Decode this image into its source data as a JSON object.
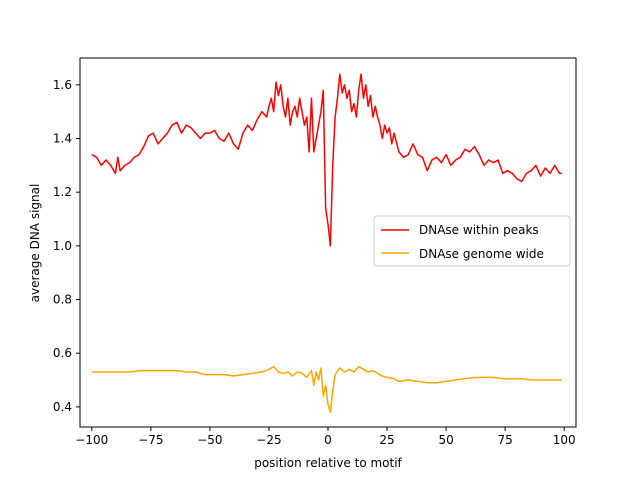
{
  "chart_data": {
    "type": "line",
    "xlabel": "position relative to motif",
    "ylabel": "average DNA signal",
    "xlim": [
      -105,
      105
    ],
    "ylim": [
      0.325,
      1.7
    ],
    "x_ticks": [
      -100,
      -75,
      -50,
      -25,
      0,
      25,
      50,
      75,
      100
    ],
    "x_tick_labels": [
      "−100",
      "−75",
      "−50",
      "−25",
      "0",
      "25",
      "50",
      "75",
      "100"
    ],
    "y_ticks": [
      0.4,
      0.6,
      0.8,
      1.0,
      1.2,
      1.4,
      1.6
    ],
    "y_tick_labels": [
      "0.4",
      "0.6",
      "0.8",
      "1.0",
      "1.2",
      "1.4",
      "1.6"
    ],
    "grid": false,
    "legend_position": "center-right",
    "series": [
      {
        "name": "DNAse within peaks",
        "color": "#ff0000",
        "points": [
          [
            -100,
            1.34
          ],
          [
            -98,
            1.33
          ],
          [
            -96,
            1.3
          ],
          [
            -94,
            1.32
          ],
          [
            -92,
            1.3
          ],
          [
            -90,
            1.27
          ],
          [
            -89,
            1.33
          ],
          [
            -88,
            1.28
          ],
          [
            -86,
            1.3
          ],
          [
            -84,
            1.31
          ],
          [
            -82,
            1.33
          ],
          [
            -80,
            1.34
          ],
          [
            -78,
            1.37
          ],
          [
            -76,
            1.41
          ],
          [
            -74,
            1.42
          ],
          [
            -72,
            1.38
          ],
          [
            -70,
            1.4
          ],
          [
            -68,
            1.42
          ],
          [
            -66,
            1.45
          ],
          [
            -64,
            1.46
          ],
          [
            -62,
            1.42
          ],
          [
            -60,
            1.45
          ],
          [
            -58,
            1.44
          ],
          [
            -56,
            1.42
          ],
          [
            -54,
            1.4
          ],
          [
            -52,
            1.42
          ],
          [
            -50,
            1.42
          ],
          [
            -48,
            1.43
          ],
          [
            -46,
            1.4
          ],
          [
            -44,
            1.39
          ],
          [
            -42,
            1.42
          ],
          [
            -40,
            1.38
          ],
          [
            -38,
            1.36
          ],
          [
            -36,
            1.42
          ],
          [
            -34,
            1.45
          ],
          [
            -32,
            1.43
          ],
          [
            -30,
            1.47
          ],
          [
            -28,
            1.5
          ],
          [
            -26,
            1.48
          ],
          [
            -25,
            1.52
          ],
          [
            -24,
            1.55
          ],
          [
            -23,
            1.5
          ],
          [
            -22,
            1.61
          ],
          [
            -21,
            1.56
          ],
          [
            -20,
            1.6
          ],
          [
            -19,
            1.52
          ],
          [
            -18,
            1.48
          ],
          [
            -17,
            1.55
          ],
          [
            -16,
            1.45
          ],
          [
            -15,
            1.5
          ],
          [
            -14,
            1.52
          ],
          [
            -13,
            1.48
          ],
          [
            -12,
            1.55
          ],
          [
            -11,
            1.5
          ],
          [
            -10,
            1.45
          ],
          [
            -9,
            1.48
          ],
          [
            -8,
            1.35
          ],
          [
            -7,
            1.55
          ],
          [
            -6,
            1.35
          ],
          [
            -5,
            1.4
          ],
          [
            -4,
            1.45
          ],
          [
            -3,
            1.5
          ],
          [
            -2,
            1.58
          ],
          [
            -1,
            1.14
          ],
          [
            0,
            1.08
          ],
          [
            1,
            1.0
          ],
          [
            2,
            1.3
          ],
          [
            3,
            1.48
          ],
          [
            4,
            1.55
          ],
          [
            5,
            1.64
          ],
          [
            6,
            1.57
          ],
          [
            7,
            1.6
          ],
          [
            8,
            1.55
          ],
          [
            9,
            1.58
          ],
          [
            10,
            1.5
          ],
          [
            11,
            1.53
          ],
          [
            12,
            1.48
          ],
          [
            13,
            1.58
          ],
          [
            14,
            1.64
          ],
          [
            15,
            1.55
          ],
          [
            16,
            1.6
          ],
          [
            17,
            1.52
          ],
          [
            18,
            1.56
          ],
          [
            19,
            1.48
          ],
          [
            20,
            1.52
          ],
          [
            21,
            1.48
          ],
          [
            22,
            1.45
          ],
          [
            23,
            1.4
          ],
          [
            24,
            1.45
          ],
          [
            25,
            1.42
          ],
          [
            26,
            1.44
          ],
          [
            27,
            1.38
          ],
          [
            28,
            1.42
          ],
          [
            30,
            1.35
          ],
          [
            32,
            1.33
          ],
          [
            34,
            1.34
          ],
          [
            36,
            1.38
          ],
          [
            38,
            1.34
          ],
          [
            40,
            1.33
          ],
          [
            42,
            1.28
          ],
          [
            44,
            1.32
          ],
          [
            46,
            1.33
          ],
          [
            48,
            1.31
          ],
          [
            50,
            1.34
          ],
          [
            52,
            1.3
          ],
          [
            54,
            1.32
          ],
          [
            56,
            1.33
          ],
          [
            58,
            1.36
          ],
          [
            60,
            1.35
          ],
          [
            62,
            1.37
          ],
          [
            64,
            1.34
          ],
          [
            66,
            1.3
          ],
          [
            68,
            1.32
          ],
          [
            70,
            1.31
          ],
          [
            72,
            1.32
          ],
          [
            74,
            1.27
          ],
          [
            76,
            1.28
          ],
          [
            78,
            1.27
          ],
          [
            80,
            1.25
          ],
          [
            82,
            1.24
          ],
          [
            84,
            1.27
          ],
          [
            86,
            1.28
          ],
          [
            88,
            1.3
          ],
          [
            90,
            1.26
          ],
          [
            92,
            1.29
          ],
          [
            94,
            1.27
          ],
          [
            96,
            1.3
          ],
          [
            98,
            1.27
          ],
          [
            99,
            1.27
          ]
        ]
      },
      {
        "name": "DNAse genome wide",
        "color": "#ffa500",
        "points": [
          [
            -100,
            0.53
          ],
          [
            -96,
            0.53
          ],
          [
            -92,
            0.53
          ],
          [
            -88,
            0.53
          ],
          [
            -84,
            0.53
          ],
          [
            -80,
            0.535
          ],
          [
            -76,
            0.535
          ],
          [
            -72,
            0.535
          ],
          [
            -68,
            0.535
          ],
          [
            -64,
            0.535
          ],
          [
            -60,
            0.53
          ],
          [
            -56,
            0.53
          ],
          [
            -52,
            0.52
          ],
          [
            -48,
            0.52
          ],
          [
            -44,
            0.52
          ],
          [
            -40,
            0.515
          ],
          [
            -36,
            0.52
          ],
          [
            -32,
            0.525
          ],
          [
            -28,
            0.53
          ],
          [
            -25,
            0.54
          ],
          [
            -23,
            0.55
          ],
          [
            -21,
            0.53
          ],
          [
            -19,
            0.525
          ],
          [
            -17,
            0.53
          ],
          [
            -15,
            0.515
          ],
          [
            -13,
            0.53
          ],
          [
            -11,
            0.525
          ],
          [
            -9,
            0.51
          ],
          [
            -7,
            0.535
          ],
          [
            -6,
            0.48
          ],
          [
            -5,
            0.53
          ],
          [
            -4,
            0.5
          ],
          [
            -3,
            0.545
          ],
          [
            -2,
            0.44
          ],
          [
            -1,
            0.48
          ],
          [
            0,
            0.41
          ],
          [
            1,
            0.38
          ],
          [
            2,
            0.46
          ],
          [
            3,
            0.52
          ],
          [
            5,
            0.545
          ],
          [
            7,
            0.53
          ],
          [
            9,
            0.54
          ],
          [
            11,
            0.53
          ],
          [
            13,
            0.55
          ],
          [
            15,
            0.54
          ],
          [
            17,
            0.53
          ],
          [
            19,
            0.535
          ],
          [
            21,
            0.525
          ],
          [
            23,
            0.515
          ],
          [
            25,
            0.51
          ],
          [
            28,
            0.505
          ],
          [
            30,
            0.495
          ],
          [
            34,
            0.5
          ],
          [
            38,
            0.495
          ],
          [
            42,
            0.49
          ],
          [
            46,
            0.49
          ],
          [
            50,
            0.495
          ],
          [
            54,
            0.5
          ],
          [
            58,
            0.505
          ],
          [
            62,
            0.51
          ],
          [
            66,
            0.51
          ],
          [
            70,
            0.51
          ],
          [
            74,
            0.505
          ],
          [
            78,
            0.505
          ],
          [
            82,
            0.505
          ],
          [
            86,
            0.5
          ],
          [
            90,
            0.5
          ],
          [
            94,
            0.5
          ],
          [
            98,
            0.5
          ],
          [
            99,
            0.5
          ]
        ]
      }
    ]
  }
}
